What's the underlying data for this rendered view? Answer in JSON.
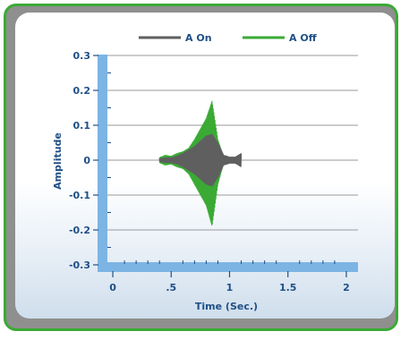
{
  "chart_data": {
    "type": "line",
    "title": "",
    "xlabel": "Time (Sec.)",
    "ylabel": "Amplitude",
    "xlim": [
      -0.1,
      2.1
    ],
    "ylim": [
      -0.3,
      0.3
    ],
    "x_ticks": [
      "0",
      ".5",
      "1",
      "1.5",
      "2"
    ],
    "x_tick_values": [
      0,
      0.5,
      1,
      1.5,
      2
    ],
    "y_ticks": [
      "0.3",
      "0.2",
      "0.1",
      "0",
      "-0.1",
      "-0.2",
      "-0.3"
    ],
    "y_tick_values": [
      0.3,
      0.2,
      0.1,
      0,
      -0.1,
      -0.2,
      -0.3
    ],
    "grid": true,
    "legend_position": "top-center",
    "series": [
      {
        "name": "A On",
        "color": "#5f5f5f",
        "envelope_x": [
          0.4,
          0.45,
          0.5,
          0.55,
          0.6,
          0.65,
          0.7,
          0.75,
          0.8,
          0.85,
          0.9,
          0.95,
          1.0,
          1.05,
          1.1
        ],
        "envelope_upper": [
          0.005,
          0.008,
          0.008,
          0.012,
          0.02,
          0.03,
          0.04,
          0.055,
          0.07,
          0.075,
          0.05,
          0.015,
          0.01,
          0.01,
          0.02
        ],
        "envelope_lower": [
          -0.005,
          -0.008,
          -0.008,
          -0.012,
          -0.02,
          -0.03,
          -0.04,
          -0.055,
          -0.07,
          -0.075,
          -0.05,
          -0.015,
          -0.01,
          -0.01,
          -0.02
        ]
      },
      {
        "name": "A Off",
        "color": "#3aaa35",
        "envelope_x": [
          0.4,
          0.45,
          0.5,
          0.55,
          0.6,
          0.65,
          0.7,
          0.75,
          0.8,
          0.85,
          0.9,
          0.95
        ],
        "envelope_upper": [
          0.008,
          0.015,
          0.012,
          0.02,
          0.025,
          0.035,
          0.06,
          0.09,
          0.12,
          0.17,
          0.06,
          0.01
        ],
        "envelope_lower": [
          -0.008,
          -0.015,
          -0.012,
          -0.02,
          -0.025,
          -0.04,
          -0.07,
          -0.1,
          -0.13,
          -0.19,
          -0.07,
          -0.01
        ]
      }
    ]
  }
}
